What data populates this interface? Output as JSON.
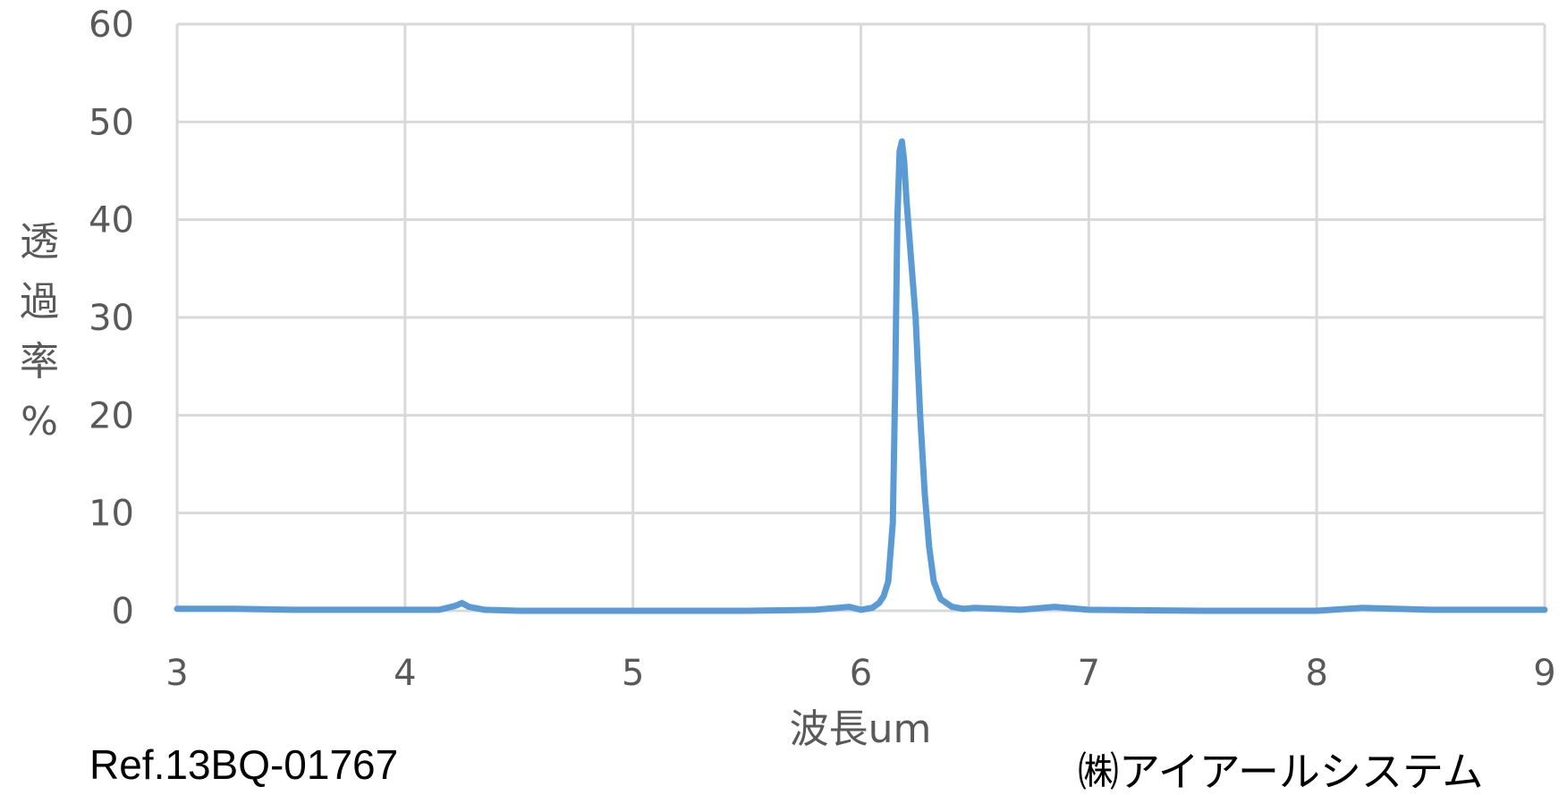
{
  "chart_data": {
    "type": "line",
    "xlabel": "波長um",
    "ylabel": "透過率%",
    "xlim": [
      3,
      9
    ],
    "ylim": [
      0,
      60
    ],
    "x_ticks": [
      "3",
      "4",
      "5",
      "6",
      "7",
      "8",
      "9"
    ],
    "y_ticks": [
      "0",
      "10",
      "20",
      "30",
      "40",
      "50",
      "60"
    ],
    "grid": true,
    "legend": "none",
    "series": [
      {
        "color": "#5B9BD5",
        "x": [
          3.0,
          3.25,
          3.5,
          3.75,
          4.0,
          4.15,
          4.22,
          4.25,
          4.28,
          4.35,
          4.5,
          5.0,
          5.5,
          5.8,
          5.9,
          5.95,
          6.0,
          6.05,
          6.08,
          6.1,
          6.12,
          6.14,
          6.15,
          6.16,
          6.17,
          6.18,
          6.19,
          6.2,
          6.22,
          6.24,
          6.26,
          6.28,
          6.3,
          6.32,
          6.35,
          6.4,
          6.45,
          6.5,
          6.6,
          6.7,
          6.85,
          7.0,
          7.5,
          8.0,
          8.2,
          8.5,
          9.0
        ],
        "y": [
          0.2,
          0.2,
          0.1,
          0.1,
          0.1,
          0.1,
          0.5,
          0.8,
          0.4,
          0.1,
          0.0,
          0.0,
          0.0,
          0.1,
          0.3,
          0.4,
          0.1,
          0.3,
          0.8,
          1.5,
          3.0,
          9.0,
          22.0,
          40.0,
          47.0,
          48.0,
          46.0,
          42.0,
          36.0,
          30.0,
          20.0,
          12.0,
          6.5,
          3.0,
          1.2,
          0.4,
          0.2,
          0.3,
          0.2,
          0.1,
          0.4,
          0.1,
          0.0,
          0.0,
          0.3,
          0.1,
          0.1
        ]
      }
    ]
  },
  "footer": {
    "left_text": "Ref.13BQ-01767",
    "right_text": "㈱アイアールシステム"
  }
}
